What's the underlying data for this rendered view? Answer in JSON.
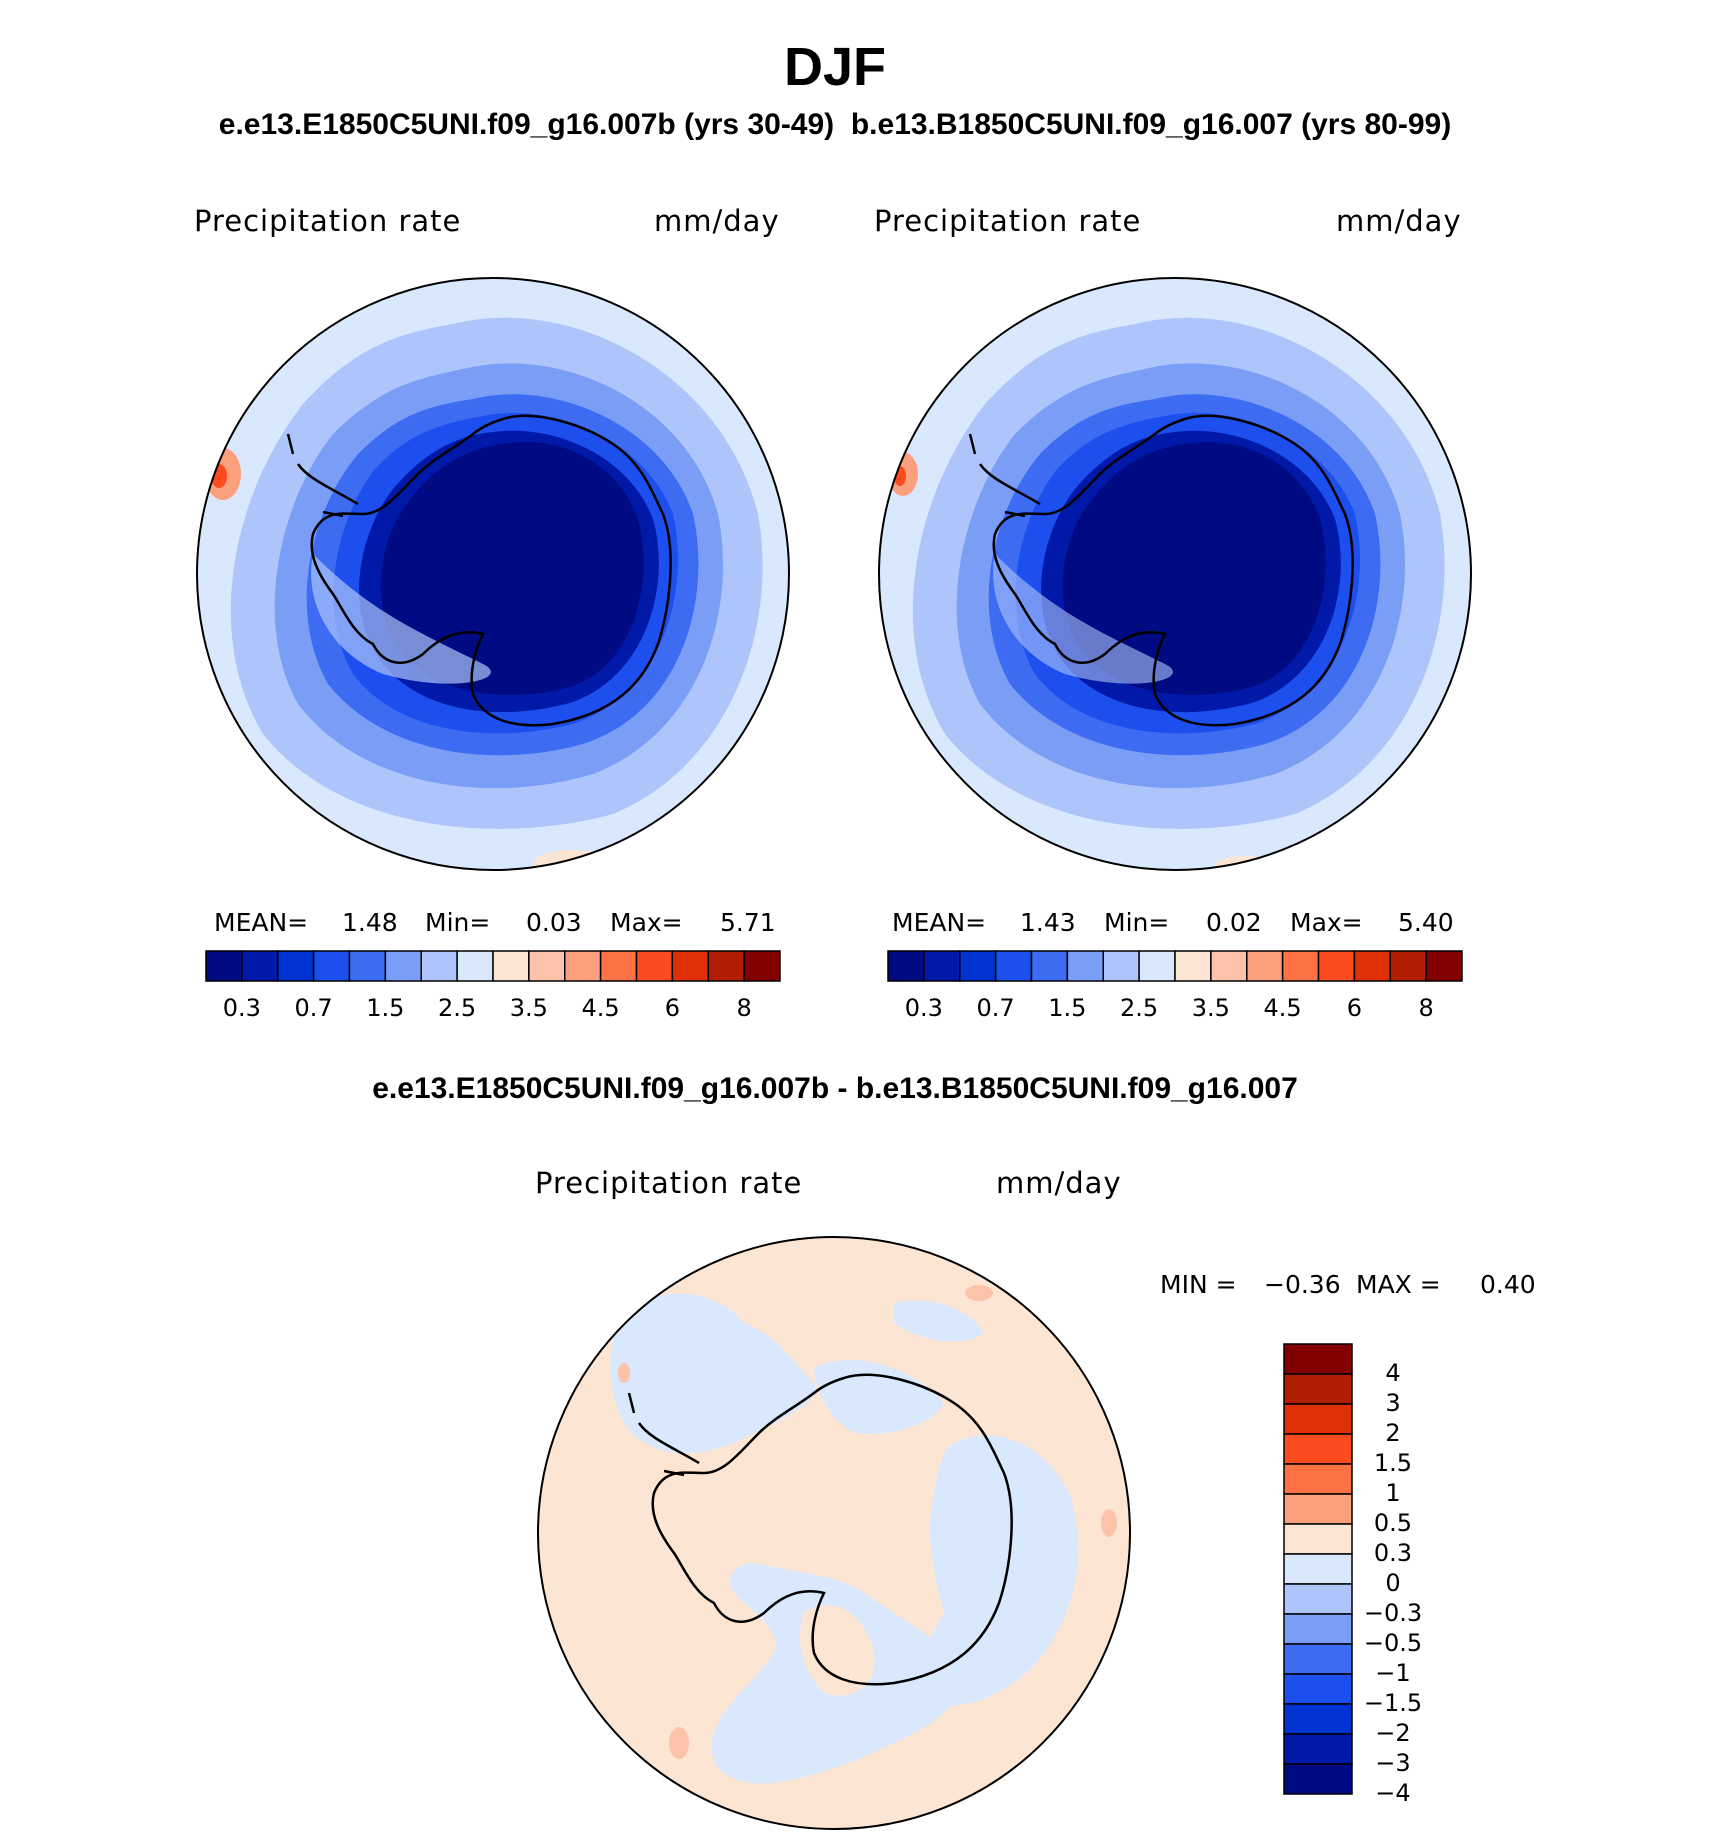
{
  "title": "DJF",
  "subtitle_left": "e.e13.E1850C5UNI.f09_g16.007b (yrs 30-49)",
  "subtitle_right": "b.e13.B1850C5UNI.f09_g16.007 (yrs 80-99)",
  "diff_title": "e.e13.E1850C5UNI.f09_g16.007b - b.e13.B1850C5UNI.f09_g16.007",
  "panels": [
    {
      "variable": "Precipitation  rate",
      "units": "mm/day",
      "stats": {
        "mean_label": "MEAN=",
        "mean": "1.48",
        "min_label": "Min=",
        "min": "0.03",
        "max_label": "Max=",
        "max": "5.71"
      }
    },
    {
      "variable": "Precipitation  rate",
      "units": "mm/day",
      "stats": {
        "mean_label": "MEAN=",
        "mean": "1.43",
        "min_label": "Min=",
        "min": "0.02",
        "max_label": "Max=",
        "max": "5.40"
      }
    }
  ],
  "diff_panel": {
    "variable": "Precipitation  rate",
    "units": "mm/day",
    "stats": {
      "min_label": "MIN =",
      "min": "−0.36",
      "max_label": "MAX =",
      "max": "0.40"
    }
  },
  "field_colorbar": {
    "labels": [
      "0.3",
      "0.7",
      "1.5",
      "2.5",
      "3.5",
      "4.5",
      "6",
      "8"
    ],
    "colors": [
      "#000a82",
      "#0019a8",
      "#0034d2",
      "#1c4fee",
      "#3d6cf2",
      "#7a9ef6",
      "#adc5fa",
      "#d9e8fd",
      "#fde5d3",
      "#fcc3aa",
      "#fb9f7c",
      "#fc7244",
      "#fb4b1f",
      "#df3008",
      "#b21e04",
      "#820000"
    ]
  },
  "diff_colorbar": {
    "labels": [
      "4",
      "3",
      "2",
      "1.5",
      "1",
      "0.5",
      "0.3",
      "0",
      "−0.3",
      "−0.5",
      "−1",
      "−1.5",
      "−2",
      "−3",
      "−4"
    ],
    "colors": [
      "#820000",
      "#b21e04",
      "#df3008",
      "#fb4b1f",
      "#fc7244",
      "#fba07c",
      "#fde5d3",
      "#d9e8fd",
      "#adc5fa",
      "#7a9ef6",
      "#3d6cf2",
      "#1c4fee",
      "#0034d2",
      "#0019a8",
      "#000a82"
    ]
  },
  "colors": {
    "antarctic_interior": "#000a82",
    "ocean_mid": "#3d6cf2",
    "ocean_outer": "#adc5fa",
    "diff_positive": "#fde5d3",
    "diff_negative": "#d9e8fd"
  }
}
